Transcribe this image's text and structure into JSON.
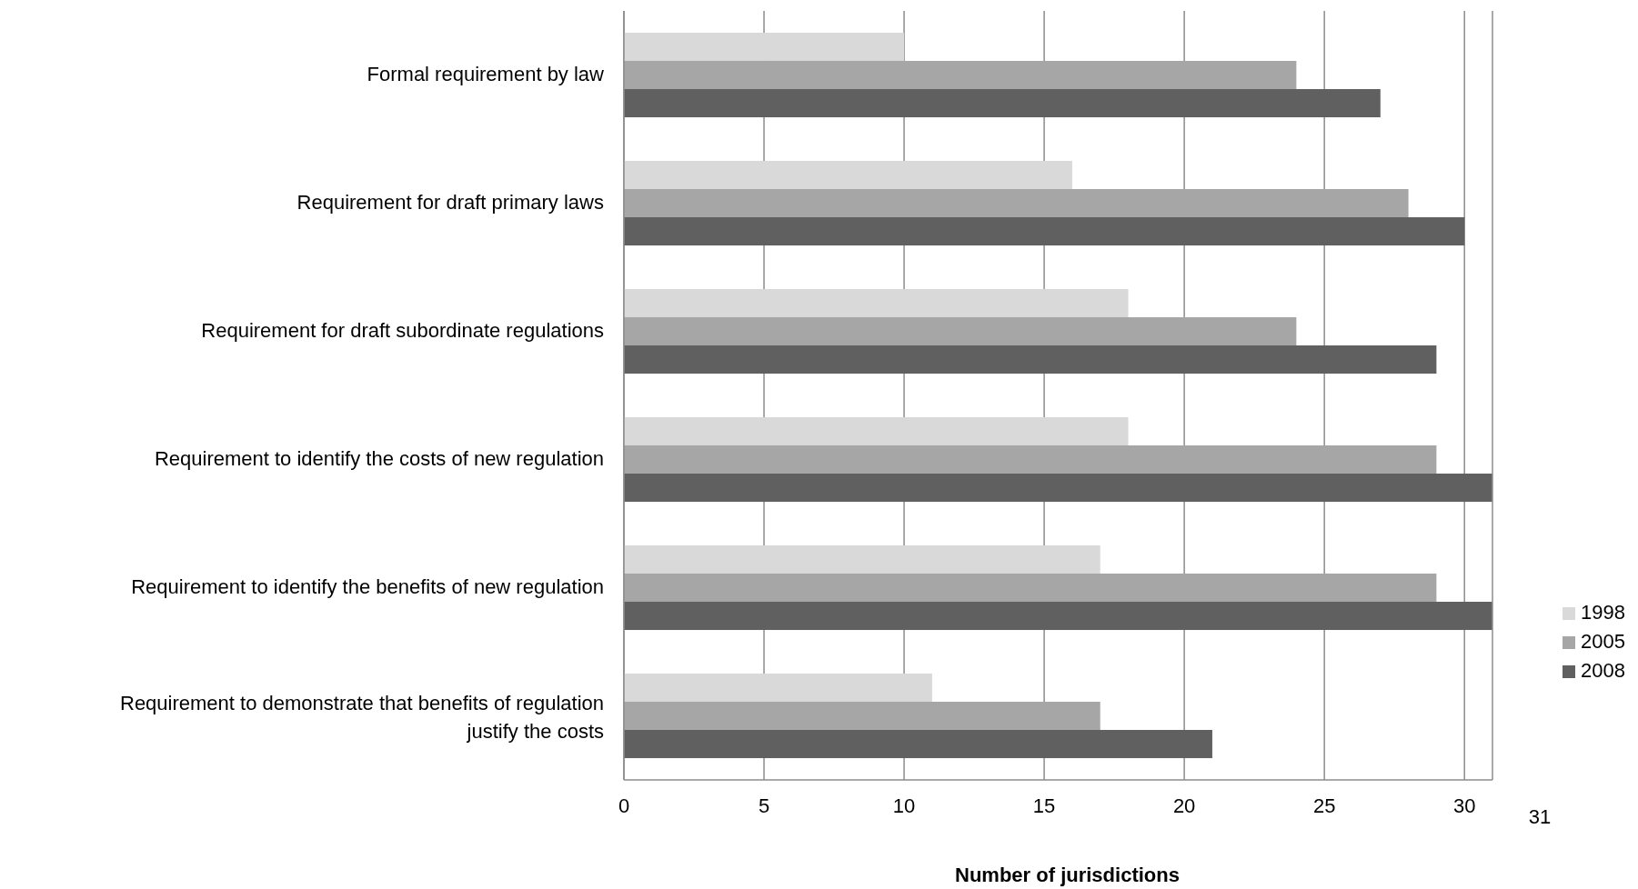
{
  "chart_data": {
    "type": "bar",
    "orientation": "horizontal",
    "xlabel": "Number of jurisdictions",
    "categories": [
      "Formal requirement by law ",
      "Requirement for draft primary laws",
      "Requirement for draft subordinate regulations ",
      "Requirement to identify the costs of new regulation",
      "Requirement to identify the benefits of new regulation",
      "Requirement to demonstrate that benefits of regulation justify the costs"
    ],
    "series": [
      {
        "name": "1998",
        "color": "#d9d9d9",
        "values": [
          10,
          16,
          18,
          18,
          17,
          11
        ]
      },
      {
        "name": "2005",
        "color": "#a6a6a6",
        "values": [
          24,
          28,
          24,
          29,
          29,
          17
        ]
      },
      {
        "name": "2008",
        "color": "#606060",
        "values": [
          27,
          30,
          29,
          31,
          31,
          21
        ]
      }
    ],
    "xlim": [
      0,
      31
    ],
    "xticks": [
      0,
      5,
      10,
      15,
      20,
      25,
      30
    ],
    "grid": "x",
    "legend": "right",
    "annotations": [
      "31"
    ]
  }
}
